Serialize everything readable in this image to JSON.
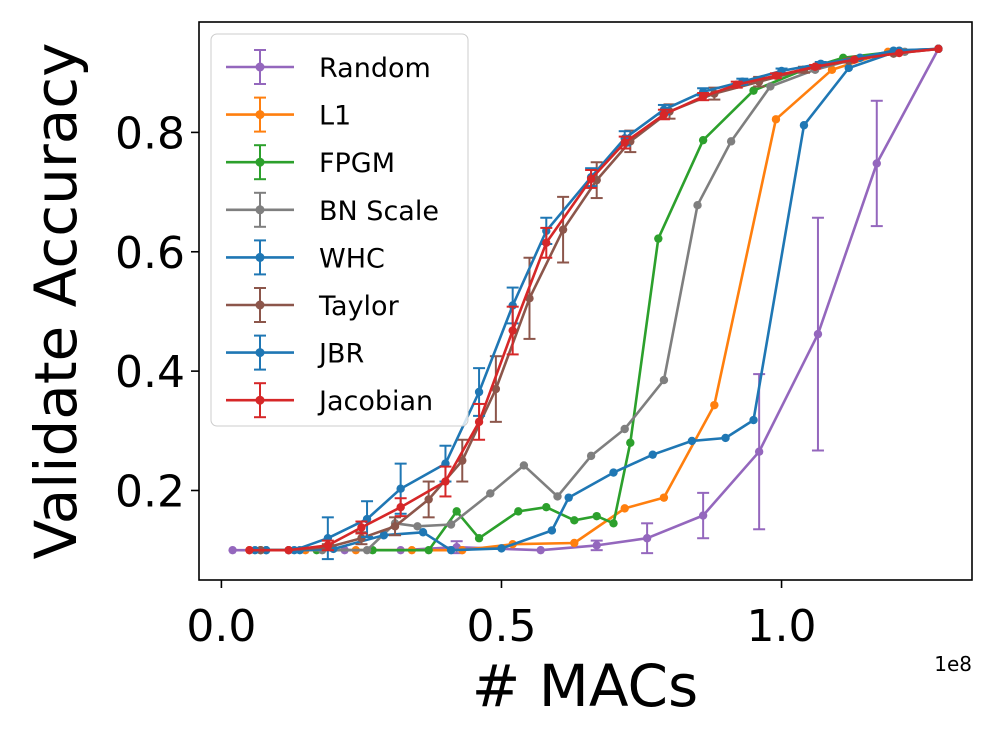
{
  "chart_data": {
    "type": "line",
    "title": "",
    "xlabel": "# MACs",
    "ylabel": "Validate Accuracy",
    "x_offset_label": "1e8",
    "xlim": [
      -0.04,
      1.34
    ],
    "ylim": [
      0.05,
      0.985
    ],
    "x_ticks": [
      0.0,
      0.5,
      1.0
    ],
    "x_tick_labels": [
      "0.0",
      "0.5",
      "1.0"
    ],
    "y_ticks": [
      0.2,
      0.4,
      0.6,
      0.8
    ],
    "y_tick_labels": [
      "0.2",
      "0.4",
      "0.6",
      "0.8"
    ],
    "grid": false,
    "legend_position": "top-left",
    "series": [
      {
        "name": "Random",
        "color": "#9467bd",
        "points": [
          {
            "x": 0.02,
            "y": 0.1,
            "err": 0.0
          },
          {
            "x": 0.12,
            "y": 0.1,
            "err": 0.0
          },
          {
            "x": 0.22,
            "y": 0.1,
            "err": 0.0
          },
          {
            "x": 0.32,
            "y": 0.1,
            "err": 0.0
          },
          {
            "x": 0.42,
            "y": 0.105,
            "err": 0.01
          },
          {
            "x": 0.57,
            "y": 0.1,
            "err": 0.0
          },
          {
            "x": 0.67,
            "y": 0.108,
            "err": 0.008
          },
          {
            "x": 0.76,
            "y": 0.12,
            "err": 0.025
          },
          {
            "x": 0.86,
            "y": 0.158,
            "err": 0.038
          },
          {
            "x": 0.96,
            "y": 0.265,
            "err": 0.13
          },
          {
            "x": 1.065,
            "y": 0.462,
            "err": 0.195
          },
          {
            "x": 1.17,
            "y": 0.748,
            "err": 0.105
          },
          {
            "x": 1.28,
            "y": 0.94,
            "err": 0.0
          }
        ]
      },
      {
        "name": "L1",
        "color": "#ff7f0e",
        "points": [
          {
            "x": 0.05,
            "y": 0.1,
            "err": 0.0
          },
          {
            "x": 0.15,
            "y": 0.1,
            "err": 0.0
          },
          {
            "x": 0.24,
            "y": 0.1,
            "err": 0.0
          },
          {
            "x": 0.34,
            "y": 0.1,
            "err": 0.0
          },
          {
            "x": 0.43,
            "y": 0.1,
            "err": 0.0
          },
          {
            "x": 0.52,
            "y": 0.11,
            "err": 0.0
          },
          {
            "x": 0.63,
            "y": 0.112,
            "err": 0.0
          },
          {
            "x": 0.72,
            "y": 0.17,
            "err": 0.0
          },
          {
            "x": 0.79,
            "y": 0.188,
            "err": 0.0
          },
          {
            "x": 0.88,
            "y": 0.343,
            "err": 0.0
          },
          {
            "x": 0.99,
            "y": 0.822,
            "err": 0.0
          },
          {
            "x": 1.09,
            "y": 0.905,
            "err": 0.0
          },
          {
            "x": 1.19,
            "y": 0.935,
            "err": 0.0
          },
          {
            "x": 1.28,
            "y": 0.94,
            "err": 0.0
          }
        ]
      },
      {
        "name": "FPGM",
        "color": "#2ca02c",
        "points": [
          {
            "x": 0.07,
            "y": 0.1,
            "err": 0.0
          },
          {
            "x": 0.17,
            "y": 0.1,
            "err": 0.0
          },
          {
            "x": 0.27,
            "y": 0.1,
            "err": 0.0
          },
          {
            "x": 0.37,
            "y": 0.1,
            "err": 0.0
          },
          {
            "x": 0.42,
            "y": 0.165,
            "err": 0.0
          },
          {
            "x": 0.46,
            "y": 0.12,
            "err": 0.0
          },
          {
            "x": 0.53,
            "y": 0.165,
            "err": 0.0
          },
          {
            "x": 0.58,
            "y": 0.172,
            "err": 0.0
          },
          {
            "x": 0.63,
            "y": 0.15,
            "err": 0.0
          },
          {
            "x": 0.67,
            "y": 0.157,
            "err": 0.0
          },
          {
            "x": 0.7,
            "y": 0.145,
            "err": 0.0
          },
          {
            "x": 0.73,
            "y": 0.28,
            "err": 0.0
          },
          {
            "x": 0.78,
            "y": 0.622,
            "err": 0.0
          },
          {
            "x": 0.86,
            "y": 0.787,
            "err": 0.0
          },
          {
            "x": 0.95,
            "y": 0.87,
            "err": 0.0
          },
          {
            "x": 1.04,
            "y": 0.905,
            "err": 0.0
          },
          {
            "x": 1.11,
            "y": 0.925,
            "err": 0.0
          },
          {
            "x": 1.2,
            "y": 0.935,
            "err": 0.0
          },
          {
            "x": 1.28,
            "y": 0.94,
            "err": 0.0
          }
        ]
      },
      {
        "name": "BN Scale",
        "color": "#7f7f7f",
        "points": [
          {
            "x": 0.08,
            "y": 0.1,
            "err": 0.0
          },
          {
            "x": 0.18,
            "y": 0.1,
            "err": 0.0
          },
          {
            "x": 0.26,
            "y": 0.1,
            "err": 0.0
          },
          {
            "x": 0.31,
            "y": 0.145,
            "err": 0.0
          },
          {
            "x": 0.35,
            "y": 0.14,
            "err": 0.0
          },
          {
            "x": 0.41,
            "y": 0.143,
            "err": 0.0
          },
          {
            "x": 0.48,
            "y": 0.195,
            "err": 0.0
          },
          {
            "x": 0.54,
            "y": 0.242,
            "err": 0.0
          },
          {
            "x": 0.6,
            "y": 0.19,
            "err": 0.0
          },
          {
            "x": 0.66,
            "y": 0.258,
            "err": 0.0
          },
          {
            "x": 0.72,
            "y": 0.303,
            "err": 0.0
          },
          {
            "x": 0.79,
            "y": 0.385,
            "err": 0.0
          },
          {
            "x": 0.85,
            "y": 0.678,
            "err": 0.0
          },
          {
            "x": 0.91,
            "y": 0.785,
            "err": 0.0
          },
          {
            "x": 0.98,
            "y": 0.877,
            "err": 0.0
          },
          {
            "x": 1.06,
            "y": 0.905,
            "err": 0.0
          },
          {
            "x": 1.14,
            "y": 0.925,
            "err": 0.0
          },
          {
            "x": 1.22,
            "y": 0.935,
            "err": 0.0
          },
          {
            "x": 1.28,
            "y": 0.94,
            "err": 0.0
          }
        ]
      },
      {
        "name": "WHC",
        "color": "#1f77b4",
        "points": [
          {
            "x": 0.08,
            "y": 0.1,
            "err": 0.0
          },
          {
            "x": 0.14,
            "y": 0.1,
            "err": 0.0
          },
          {
            "x": 0.2,
            "y": 0.102,
            "err": 0.0
          },
          {
            "x": 0.29,
            "y": 0.125,
            "err": 0.0
          },
          {
            "x": 0.36,
            "y": 0.13,
            "err": 0.0
          },
          {
            "x": 0.41,
            "y": 0.1,
            "err": 0.0
          },
          {
            "x": 0.5,
            "y": 0.103,
            "err": 0.0
          },
          {
            "x": 0.59,
            "y": 0.133,
            "err": 0.0
          },
          {
            "x": 0.62,
            "y": 0.188,
            "err": 0.0
          },
          {
            "x": 0.7,
            "y": 0.23,
            "err": 0.0
          },
          {
            "x": 0.77,
            "y": 0.26,
            "err": 0.0
          },
          {
            "x": 0.84,
            "y": 0.283,
            "err": 0.0
          },
          {
            "x": 0.9,
            "y": 0.288,
            "err": 0.0
          },
          {
            "x": 0.95,
            "y": 0.318,
            "err": 0.0
          },
          {
            "x": 1.04,
            "y": 0.812,
            "err": 0.0
          },
          {
            "x": 1.12,
            "y": 0.908,
            "err": 0.0
          },
          {
            "x": 1.21,
            "y": 0.937,
            "err": 0.0
          },
          {
            "x": 1.28,
            "y": 0.94,
            "err": 0.0
          }
        ]
      },
      {
        "name": "Taylor",
        "color": "#8c564b",
        "points": [
          {
            "x": 0.07,
            "y": 0.1,
            "err": 0.0
          },
          {
            "x": 0.12,
            "y": 0.1,
            "err": 0.0
          },
          {
            "x": 0.19,
            "y": 0.105,
            "err": 0.005
          },
          {
            "x": 0.25,
            "y": 0.12,
            "err": 0.01
          },
          {
            "x": 0.31,
            "y": 0.14,
            "err": 0.015
          },
          {
            "x": 0.37,
            "y": 0.185,
            "err": 0.03
          },
          {
            "x": 0.43,
            "y": 0.25,
            "err": 0.035
          },
          {
            "x": 0.49,
            "y": 0.37,
            "err": 0.055
          },
          {
            "x": 0.55,
            "y": 0.522,
            "err": 0.068
          },
          {
            "x": 0.61,
            "y": 0.637,
            "err": 0.055
          },
          {
            "x": 0.67,
            "y": 0.72,
            "err": 0.03
          },
          {
            "x": 0.73,
            "y": 0.785,
            "err": 0.018
          },
          {
            "x": 0.8,
            "y": 0.835,
            "err": 0.012
          },
          {
            "x": 0.88,
            "y": 0.865,
            "err": 0.01
          },
          {
            "x": 0.96,
            "y": 0.885,
            "err": 0.008
          },
          {
            "x": 1.04,
            "y": 0.905,
            "err": 0.005
          },
          {
            "x": 1.12,
            "y": 0.92,
            "err": 0.003
          },
          {
            "x": 1.2,
            "y": 0.932,
            "err": 0.0
          },
          {
            "x": 1.28,
            "y": 0.94,
            "err": 0.0
          }
        ]
      },
      {
        "name": "JBR",
        "color": "#1f77b4",
        "points": [
          {
            "x": 0.06,
            "y": 0.1,
            "err": 0.0
          },
          {
            "x": 0.13,
            "y": 0.1,
            "err": 0.0
          },
          {
            "x": 0.19,
            "y": 0.12,
            "err": 0.035
          },
          {
            "x": 0.26,
            "y": 0.152,
            "err": 0.03
          },
          {
            "x": 0.32,
            "y": 0.203,
            "err": 0.042
          },
          {
            "x": 0.4,
            "y": 0.245,
            "err": 0.03
          },
          {
            "x": 0.46,
            "y": 0.365,
            "err": 0.04
          },
          {
            "x": 0.52,
            "y": 0.51,
            "err": 0.03
          },
          {
            "x": 0.58,
            "y": 0.635,
            "err": 0.022
          },
          {
            "x": 0.66,
            "y": 0.725,
            "err": 0.015
          },
          {
            "x": 0.72,
            "y": 0.79,
            "err": 0.012
          },
          {
            "x": 0.79,
            "y": 0.838,
            "err": 0.008
          },
          {
            "x": 0.86,
            "y": 0.868,
            "err": 0.006
          },
          {
            "x": 0.93,
            "y": 0.885,
            "err": 0.005
          },
          {
            "x": 1.0,
            "y": 0.903,
            "err": 0.004
          },
          {
            "x": 1.07,
            "y": 0.915,
            "err": 0.003
          },
          {
            "x": 1.14,
            "y": 0.925,
            "err": 0.0
          },
          {
            "x": 1.2,
            "y": 0.937,
            "err": 0.0
          },
          {
            "x": 1.28,
            "y": 0.94,
            "err": 0.0
          }
        ]
      },
      {
        "name": "Jacobian",
        "color": "#d62728",
        "points": [
          {
            "x": 0.05,
            "y": 0.1,
            "err": 0.0
          },
          {
            "x": 0.12,
            "y": 0.1,
            "err": 0.0
          },
          {
            "x": 0.19,
            "y": 0.108,
            "err": 0.008
          },
          {
            "x": 0.25,
            "y": 0.138,
            "err": 0.01
          },
          {
            "x": 0.32,
            "y": 0.172,
            "err": 0.015
          },
          {
            "x": 0.4,
            "y": 0.215,
            "err": 0.025
          },
          {
            "x": 0.46,
            "y": 0.315,
            "err": 0.03
          },
          {
            "x": 0.52,
            "y": 0.468,
            "err": 0.04
          },
          {
            "x": 0.58,
            "y": 0.615,
            "err": 0.025
          },
          {
            "x": 0.66,
            "y": 0.722,
            "err": 0.015
          },
          {
            "x": 0.72,
            "y": 0.783,
            "err": 0.01
          },
          {
            "x": 0.79,
            "y": 0.83,
            "err": 0.008
          },
          {
            "x": 0.86,
            "y": 0.86,
            "err": 0.006
          },
          {
            "x": 0.92,
            "y": 0.88,
            "err": 0.005
          },
          {
            "x": 0.99,
            "y": 0.895,
            "err": 0.004
          },
          {
            "x": 1.06,
            "y": 0.91,
            "err": 0.003
          },
          {
            "x": 1.13,
            "y": 0.922,
            "err": 0.0
          },
          {
            "x": 1.21,
            "y": 0.933,
            "err": 0.0
          },
          {
            "x": 1.28,
            "y": 0.94,
            "err": 0.0
          }
        ]
      }
    ]
  }
}
